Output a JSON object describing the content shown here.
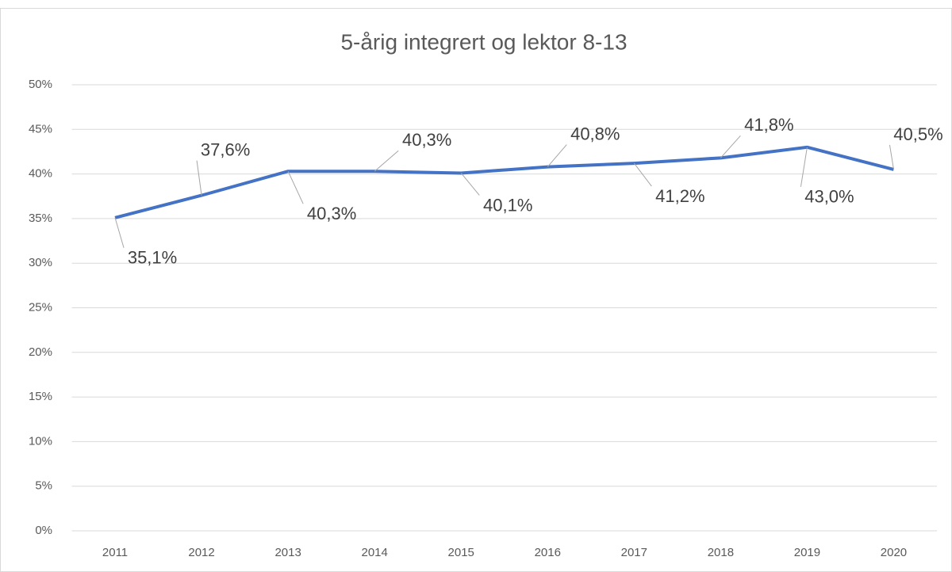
{
  "chart_data": {
    "type": "line",
    "title": "5-årig integrert og lektor 8-13",
    "categories": [
      "2011",
      "2012",
      "2013",
      "2014",
      "2015",
      "2016",
      "2017",
      "2018",
      "2019",
      "2020"
    ],
    "series": [
      {
        "name": "5-årig integrert og lektor 8-13",
        "color": "#4472c4",
        "values": [
          35.1,
          37.6,
          40.3,
          40.3,
          40.1,
          40.8,
          41.2,
          41.8,
          43.0,
          40.5
        ],
        "value_labels": [
          "35,1%",
          "37,6%",
          "40,3%",
          "40,3%",
          "40,1%",
          "40,8%",
          "41,2%",
          "41,8%",
          "43,0%",
          "40,5%"
        ]
      }
    ],
    "ylim": [
      0,
      50
    ],
    "yticks": [
      {
        "value": 0,
        "label": "0%"
      },
      {
        "value": 5,
        "label": "5%"
      },
      {
        "value": 10,
        "label": "10%"
      },
      {
        "value": 15,
        "label": "15%"
      },
      {
        "value": 20,
        "label": "20%"
      },
      {
        "value": 25,
        "label": "25%"
      },
      {
        "value": 30,
        "label": "30%"
      },
      {
        "value": 35,
        "label": "35%"
      },
      {
        "value": 40,
        "label": "40%"
      },
      {
        "value": 45,
        "label": "45%"
      },
      {
        "value": 50,
        "label": "50%"
      }
    ],
    "grid": true
  }
}
